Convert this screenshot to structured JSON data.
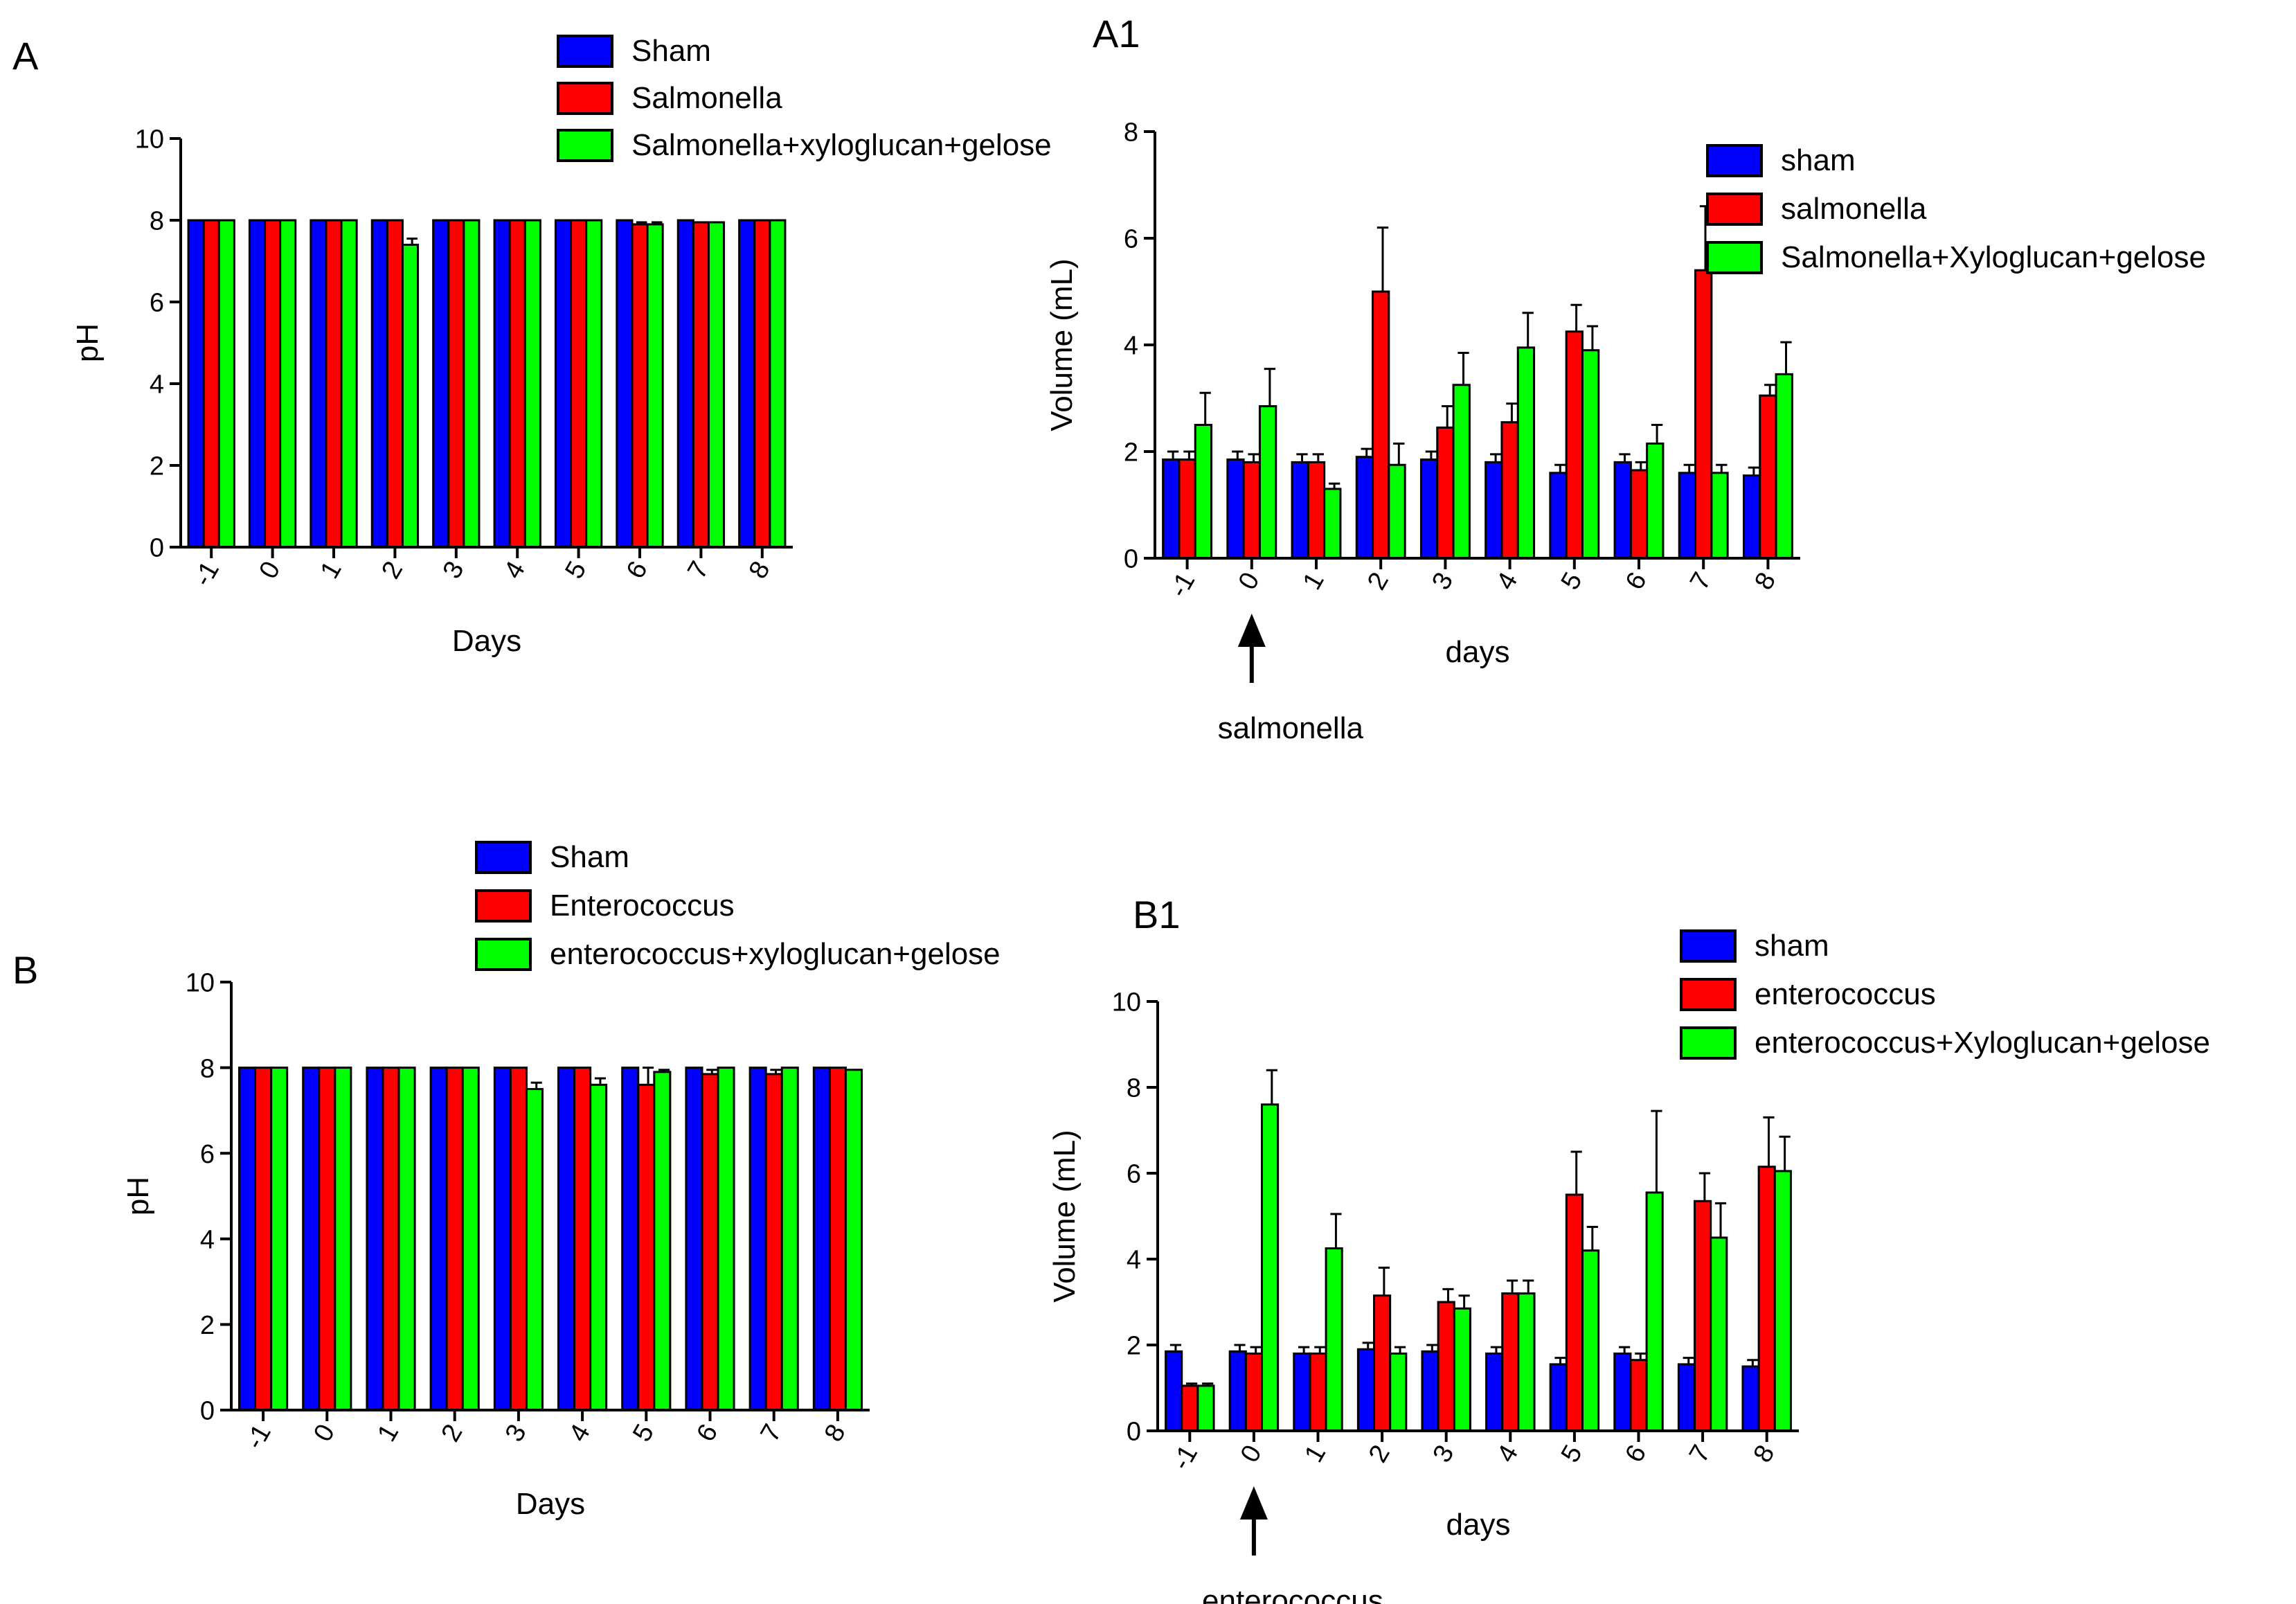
{
  "chart_data": [
    {
      "id": "A",
      "panel_label": "A",
      "type": "bar",
      "xlabel": "Days",
      "ylabel": "pH",
      "ylim": [
        0,
        10
      ],
      "yticks": [
        "0",
        "2",
        "4",
        "6",
        "8",
        "10"
      ],
      "categories": [
        "-1",
        "0",
        "1",
        "2",
        "3",
        "4",
        "5",
        "6",
        "7",
        "8"
      ],
      "legend": {
        "position": "top",
        "labels": [
          "Sham",
          "Salmonella",
          "Salmonella+xyloglucan+gelose"
        ]
      },
      "colors": [
        "#0000ff",
        "#ff0000",
        "#00ff00"
      ],
      "series": [
        {
          "name": "Sham",
          "values": [
            8,
            8,
            8,
            8,
            8,
            8,
            8,
            8,
            8,
            8
          ],
          "errors": [
            0,
            0,
            0,
            0,
            0,
            0,
            0,
            0,
            0,
            0
          ]
        },
        {
          "name": "Salmonella",
          "values": [
            8,
            8,
            8,
            8,
            8,
            8,
            8,
            7.9,
            7.95,
            8
          ],
          "errors": [
            0,
            0,
            0,
            0,
            0,
            0,
            0,
            0.05,
            0,
            0
          ]
        },
        {
          "name": "Salmonella+xyloglucan+gelose",
          "values": [
            8,
            8,
            8,
            7.4,
            8,
            8,
            8,
            7.9,
            7.95,
            8
          ],
          "errors": [
            0,
            0,
            0,
            0.15,
            0,
            0,
            0,
            0.05,
            0,
            0
          ]
        }
      ]
    },
    {
      "id": "A1",
      "panel_label": "A1",
      "type": "bar",
      "xlabel": "days",
      "ylabel": "Volume (mL)",
      "ylim": [
        0,
        8
      ],
      "yticks": [
        "0",
        "2",
        "4",
        "6",
        "8"
      ],
      "categories": [
        "-1",
        "0",
        "1",
        "2",
        "3",
        "4",
        "5",
        "6",
        "7",
        "8"
      ],
      "annotation": {
        "text": "salmonella",
        "category": "0"
      },
      "legend": {
        "position": "top-right",
        "labels": [
          "sham",
          "salmonella",
          "Salmonella+Xyloglucan+gelose"
        ]
      },
      "colors": [
        "#0000ff",
        "#ff0000",
        "#00ff00"
      ],
      "series": [
        {
          "name": "sham",
          "values": [
            1.85,
            1.85,
            1.8,
            1.9,
            1.85,
            1.8,
            1.6,
            1.8,
            1.6,
            1.55
          ],
          "errors": [
            0.15,
            0.15,
            0.15,
            0.15,
            0.15,
            0.15,
            0.15,
            0.15,
            0.15,
            0.15
          ]
        },
        {
          "name": "salmonella",
          "values": [
            1.85,
            1.8,
            1.8,
            5.0,
            2.45,
            2.55,
            4.25,
            1.65,
            5.4,
            3.05
          ],
          "errors": [
            0.15,
            0.15,
            0.15,
            1.2,
            0.4,
            0.35,
            0.5,
            0.15,
            1.2,
            0.2
          ]
        },
        {
          "name": "Salmonella+Xyloglucan+gelose",
          "values": [
            2.5,
            2.85,
            1.3,
            1.75,
            3.25,
            3.95,
            3.9,
            2.15,
            1.6,
            3.45
          ],
          "errors": [
            0.6,
            0.7,
            0.1,
            0.4,
            0.6,
            0.65,
            0.45,
            0.35,
            0.15,
            0.6
          ]
        }
      ]
    },
    {
      "id": "B",
      "panel_label": "B",
      "type": "bar",
      "xlabel": "Days",
      "ylabel": "pH",
      "ylim": [
        0,
        10
      ],
      "yticks": [
        "0",
        "2",
        "4",
        "6",
        "8",
        "10"
      ],
      "categories": [
        "-1",
        "0",
        "1",
        "2",
        "3",
        "4",
        "5",
        "6",
        "7",
        "8"
      ],
      "legend": {
        "position": "top",
        "labels": [
          "Sham",
          "Enterococcus",
          "enterococcus+xyloglucan+gelose"
        ]
      },
      "colors": [
        "#0000ff",
        "#ff0000",
        "#00ff00"
      ],
      "series": [
        {
          "name": "Sham",
          "values": [
            8,
            8,
            8,
            8,
            8,
            8,
            8,
            8,
            8,
            8
          ],
          "errors": [
            0,
            0,
            0,
            0,
            0,
            0,
            0,
            0,
            0,
            0
          ]
        },
        {
          "name": "Enterococcus",
          "values": [
            8,
            8,
            8,
            8,
            8,
            8,
            7.6,
            7.85,
            7.85,
            8
          ],
          "errors": [
            0,
            0,
            0,
            0,
            0,
            0,
            0.4,
            0.1,
            0.1,
            0
          ]
        },
        {
          "name": "enterococcus+xyloglucan+gelose",
          "values": [
            8,
            8,
            8,
            8,
            7.5,
            7.6,
            7.9,
            8,
            8,
            7.95
          ],
          "errors": [
            0,
            0,
            0,
            0,
            0.15,
            0.15,
            0.05,
            0,
            0,
            0
          ]
        }
      ]
    },
    {
      "id": "B1",
      "panel_label": "B1",
      "type": "bar",
      "xlabel": "days",
      "ylabel": "Volume (mL)",
      "ylim": [
        0,
        10
      ],
      "yticks": [
        "0",
        "2",
        "4",
        "6",
        "8",
        "10"
      ],
      "categories": [
        "-1",
        "0",
        "1",
        "2",
        "3",
        "4",
        "5",
        "6",
        "7",
        "8"
      ],
      "annotation": {
        "text": "enterococcus",
        "category": "0"
      },
      "legend": {
        "position": "top-right",
        "labels": [
          "sham",
          "enterococcus",
          "enterococcus+Xyloglucan+gelose"
        ]
      },
      "colors": [
        "#0000ff",
        "#ff0000",
        "#00ff00"
      ],
      "series": [
        {
          "name": "sham",
          "values": [
            1.85,
            1.85,
            1.8,
            1.9,
            1.85,
            1.8,
            1.55,
            1.8,
            1.55,
            1.5
          ],
          "errors": [
            0.15,
            0.15,
            0.15,
            0.15,
            0.15,
            0.15,
            0.15,
            0.15,
            0.15,
            0.15
          ]
        },
        {
          "name": "enterococcus",
          "values": [
            1.05,
            1.8,
            1.8,
            3.15,
            3.0,
            3.2,
            5.5,
            1.65,
            5.35,
            6.15
          ],
          "errors": [
            0.05,
            0.15,
            0.15,
            0.65,
            0.3,
            0.3,
            1.0,
            0.15,
            0.65,
            1.15
          ]
        },
        {
          "name": "enterococcus+Xyloglucan+gelose",
          "values": [
            1.05,
            7.6,
            4.25,
            1.8,
            2.85,
            3.2,
            4.2,
            5.55,
            4.5,
            6.05
          ],
          "errors": [
            0.05,
            0.8,
            0.8,
            0.15,
            0.3,
            0.3,
            0.55,
            1.9,
            0.8,
            0.8
          ]
        }
      ]
    }
  ]
}
